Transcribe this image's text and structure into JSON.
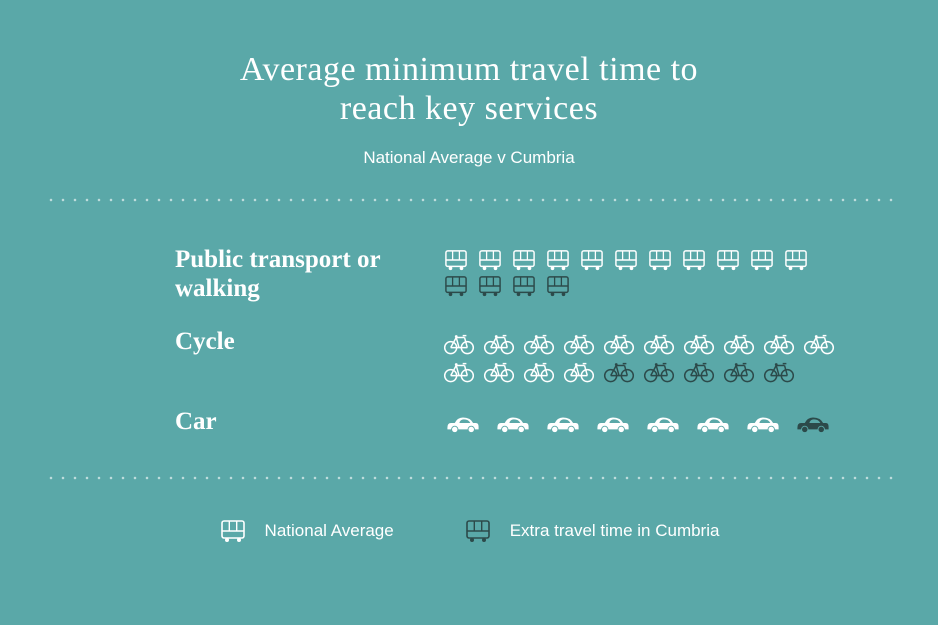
{
  "title_line1": "Average minimum travel time to",
  "title_line2": "reach key services",
  "subtitle": "National Average v Cumbria",
  "colors": {
    "background": "#5aa8a8",
    "light": "#ffffff",
    "dark": "#2c4a4a"
  },
  "rows": [
    {
      "label": "Public transport or walking",
      "icon": "bus",
      "national": 11,
      "extra": 4
    },
    {
      "label": "Cycle",
      "icon": "cycle",
      "national": 14,
      "extra": 5
    },
    {
      "label": "Car",
      "icon": "car",
      "national": 7,
      "extra": 1
    }
  ],
  "legend": {
    "national": "National Average",
    "extra": "Extra travel time in Cumbria"
  }
}
